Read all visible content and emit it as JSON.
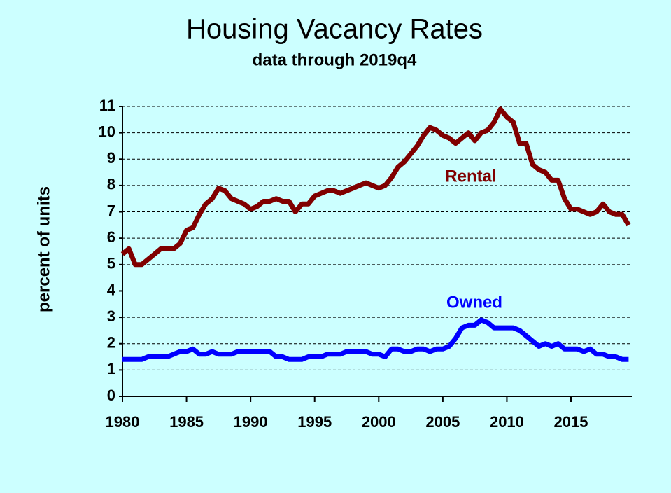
{
  "chart_data": {
    "type": "line",
    "title": "Housing Vacancy Rates",
    "subtitle": "data through 2019q4",
    "y_label": "percent of units",
    "x": [
      1980,
      1980.5,
      1981,
      1981.5,
      1982,
      1982.5,
      1983,
      1983.5,
      1984,
      1984.5,
      1985,
      1985.5,
      1986,
      1986.5,
      1987,
      1987.5,
      1988,
      1988.5,
      1989,
      1989.5,
      1990,
      1990.5,
      1991,
      1991.5,
      1992,
      1992.5,
      1993,
      1993.5,
      1994,
      1994.5,
      1995,
      1995.5,
      1996,
      1996.5,
      1997,
      1997.5,
      1998,
      1998.5,
      1999,
      1999.5,
      2000,
      2000.5,
      2001,
      2001.5,
      2002,
      2002.5,
      2003,
      2003.5,
      2004,
      2004.5,
      2005,
      2005.5,
      2006,
      2006.5,
      2007,
      2007.5,
      2008,
      2008.5,
      2009,
      2009.5,
      2010,
      2010.5,
      2011,
      2011.5,
      2012,
      2012.5,
      2013,
      2013.5,
      2014,
      2014.5,
      2015,
      2015.5,
      2016,
      2016.5,
      2017,
      2017.5,
      2018,
      2018.5,
      2019,
      2019.5
    ],
    "series": [
      {
        "name": "Rental",
        "color": "#800000",
        "values": [
          5.4,
          5.6,
          5.0,
          5.0,
          5.2,
          5.4,
          5.6,
          5.6,
          5.6,
          5.8,
          6.3,
          6.4,
          6.9,
          7.3,
          7.5,
          7.9,
          7.8,
          7.5,
          7.4,
          7.3,
          7.1,
          7.2,
          7.4,
          7.4,
          7.5,
          7.4,
          7.4,
          7.0,
          7.3,
          7.3,
          7.6,
          7.7,
          7.8,
          7.8,
          7.7,
          7.8,
          7.9,
          8.0,
          8.1,
          8.0,
          7.9,
          8.0,
          8.3,
          8.7,
          8.9,
          9.2,
          9.5,
          9.9,
          10.2,
          10.1,
          9.9,
          9.8,
          9.6,
          9.8,
          10.0,
          9.7,
          10.0,
          10.1,
          10.4,
          10.9,
          10.6,
          10.4,
          9.6,
          9.6,
          8.8,
          8.6,
          8.5,
          8.2,
          8.2,
          7.5,
          7.1,
          7.1,
          7.0,
          6.9,
          7.0,
          7.3,
          7.0,
          6.9,
          6.9,
          6.5
        ]
      },
      {
        "name": "Owned",
        "color": "#0000ff",
        "values": [
          1.4,
          1.4,
          1.4,
          1.4,
          1.5,
          1.5,
          1.5,
          1.5,
          1.6,
          1.7,
          1.7,
          1.8,
          1.6,
          1.6,
          1.7,
          1.6,
          1.6,
          1.6,
          1.7,
          1.7,
          1.7,
          1.7,
          1.7,
          1.7,
          1.5,
          1.5,
          1.4,
          1.4,
          1.4,
          1.5,
          1.5,
          1.5,
          1.6,
          1.6,
          1.6,
          1.7,
          1.7,
          1.7,
          1.7,
          1.6,
          1.6,
          1.5,
          1.8,
          1.8,
          1.7,
          1.7,
          1.8,
          1.8,
          1.7,
          1.8,
          1.8,
          1.9,
          2.2,
          2.6,
          2.7,
          2.7,
          2.9,
          2.8,
          2.6,
          2.6,
          2.6,
          2.6,
          2.5,
          2.3,
          2.1,
          1.9,
          2.0,
          1.9,
          2.0,
          1.8,
          1.8,
          1.8,
          1.7,
          1.8,
          1.6,
          1.6,
          1.5,
          1.5,
          1.4,
          1.4
        ]
      }
    ],
    "xlim": [
      1980,
      2019.75
    ],
    "xticks": [
      1980,
      1985,
      1990,
      1995,
      2000,
      2005,
      2010,
      2015
    ],
    "ylim": [
      0,
      11
    ],
    "yticks": [
      0,
      1,
      2,
      3,
      4,
      5,
      6,
      7,
      8,
      9,
      10,
      11
    ],
    "grid": true
  }
}
